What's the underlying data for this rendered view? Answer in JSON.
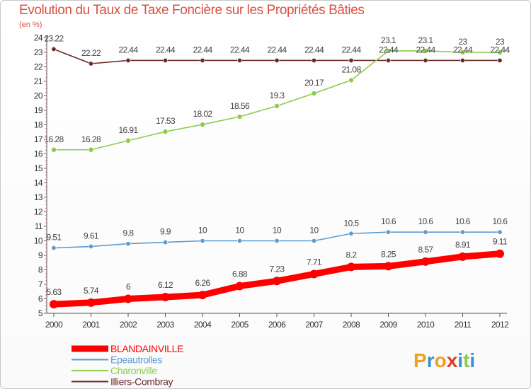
{
  "chart_data": {
    "type": "line",
    "title": "Evolution du Taux de Taxe Foncière sur les Propriétés Bâties",
    "subtitle": "(en %)",
    "x": [
      "2000",
      "2001",
      "2002",
      "2003",
      "2004",
      "2005",
      "2006",
      "2007",
      "2008",
      "2009",
      "2010",
      "2011",
      "2012"
    ],
    "y_ticks": [
      "5",
      "6",
      "7",
      "8",
      "9",
      "10",
      "11",
      "12",
      "13",
      "14",
      "15",
      "16",
      "17",
      "18",
      "19",
      "20",
      "21",
      "22",
      "23",
      "24"
    ],
    "ylim": [
      5,
      24
    ],
    "grid": false,
    "legend_position": "bottom-left",
    "series": [
      {
        "name": "BLANDAINVILLE",
        "color": "#ff0000",
        "values": [
          5.63,
          5.74,
          6,
          6.12,
          6.26,
          6.88,
          7.23,
          7.71,
          8.2,
          8.25,
          8.57,
          8.91,
          9.11
        ],
        "labels": [
          "5.63",
          "5.74",
          "6",
          "6.12",
          "6.26",
          "6.88",
          "7.23",
          "7.71",
          "8.2",
          "8.25",
          "8.57",
          "8.91",
          "9.11"
        ]
      },
      {
        "name": "Epeautrolles",
        "color": "#5b9bd0",
        "values": [
          9.51,
          9.61,
          9.8,
          9.9,
          10,
          10,
          10,
          10,
          10.5,
          10.6,
          10.6,
          10.6,
          10.6
        ],
        "labels": [
          "9.51",
          "9.61",
          "9.8",
          "9.9",
          "10",
          "10",
          "10",
          "10",
          "10.5",
          "10.6",
          "10.6",
          "10.6",
          "10.6"
        ]
      },
      {
        "name": "Charonville",
        "color": "#8ccc4a",
        "values": [
          16.28,
          16.28,
          16.91,
          17.53,
          18.02,
          18.56,
          19.3,
          20.17,
          21.08,
          23.1,
          23.1,
          23,
          23
        ],
        "labels": [
          "16.28",
          "16.28",
          "16.91",
          "17.53",
          "18.02",
          "18.56",
          "19.3",
          "20.17",
          "21.08",
          "23.1",
          "23.1",
          "23",
          "23"
        ]
      },
      {
        "name": "Illiers-Combray",
        "color": "#6b2a2a",
        "values": [
          23.22,
          22.22,
          22.44,
          22.44,
          22.44,
          22.44,
          22.44,
          22.44,
          22.44,
          22.44,
          22.44,
          22.44,
          22.44
        ],
        "labels": [
          "23.22",
          "22.22",
          "22.44",
          "22.44",
          "22.44",
          "22.44",
          "22.44",
          "22.44",
          "22.44",
          "22.44",
          "22.44",
          "22.44",
          "22.44"
        ]
      }
    ]
  },
  "logo": {
    "letters": [
      "P",
      "r",
      "o",
      "x",
      "i",
      "t",
      "i"
    ],
    "colors": [
      "#f0a020",
      "#3a8fd0",
      "#f0a020",
      "#e03a2a",
      "#3a8fd0",
      "#8ccc4a",
      "#3a8fd0"
    ]
  }
}
